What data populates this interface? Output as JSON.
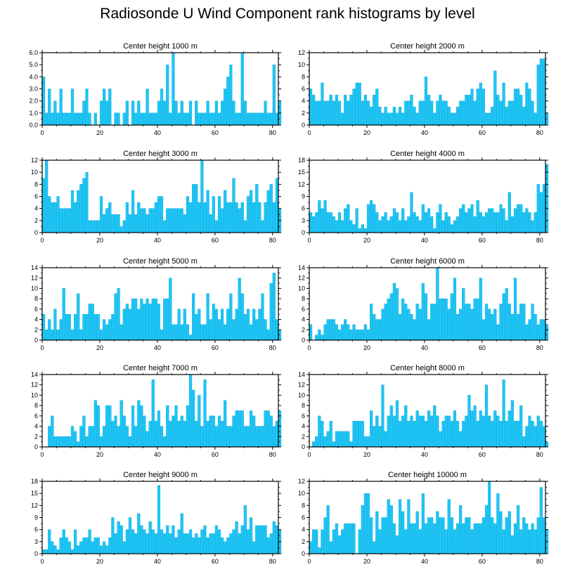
{
  "title": "Radiosonde U Wind Component rank histograms by level",
  "colors": {
    "bar": "#1ec5f5",
    "bar_edge": "#0aa8da",
    "axis": "#000000"
  },
  "chart_data": [
    {
      "type": "bar",
      "title": "Center height 1000 m",
      "xlim": [
        0,
        82
      ],
      "xticks": [
        0,
        20,
        40,
        60,
        80
      ],
      "ylim": [
        0,
        6
      ],
      "yticks": [
        0,
        1,
        2,
        3,
        4,
        5,
        6
      ],
      "ytick_labels": [
        "0.0",
        "1.0",
        "2.0",
        "3.0",
        "4.0",
        "5.0",
        "6.0"
      ],
      "values": [
        4,
        1,
        3,
        1,
        2,
        1,
        3,
        1,
        1,
        1,
        3,
        1,
        1,
        1,
        2,
        3,
        1,
        0,
        1,
        0,
        2,
        3,
        2,
        3,
        0,
        1,
        1,
        0,
        1,
        2,
        0,
        2,
        1,
        2,
        1,
        1,
        3,
        1,
        1,
        1,
        2,
        3,
        2,
        5,
        1,
        6,
        2,
        1,
        2,
        1,
        1,
        2,
        0,
        2,
        1,
        1,
        1,
        2,
        1,
        1,
        2,
        1,
        2,
        3,
        4,
        5,
        2,
        1,
        1,
        6,
        2,
        1,
        1,
        1,
        1,
        1,
        1,
        2,
        1,
        1,
        5,
        1,
        2
      ]
    },
    {
      "type": "bar",
      "title": "Center height 2000 m",
      "xlim": [
        0,
        82
      ],
      "xticks": [
        0,
        20,
        40,
        60,
        80
      ],
      "ylim": [
        0,
        12
      ],
      "yticks": [
        0,
        2,
        4,
        6,
        8,
        10,
        12
      ],
      "ytick_labels": [
        "0",
        "2",
        "4",
        "6",
        "8",
        "10",
        "12"
      ],
      "values": [
        6,
        5,
        4,
        4,
        7,
        4,
        4,
        5,
        4,
        5,
        4,
        2,
        5,
        4,
        5,
        6,
        7,
        7,
        4,
        5,
        4,
        3,
        5,
        6,
        3,
        2,
        3,
        2,
        2,
        3,
        2,
        3,
        2,
        4,
        4,
        5,
        3,
        2,
        4,
        4,
        8,
        5,
        4,
        2,
        4,
        5,
        4,
        4,
        3,
        2,
        2,
        3,
        4,
        4,
        5,
        5,
        6,
        4,
        6,
        7,
        6,
        2,
        2,
        3,
        9,
        5,
        4,
        7,
        3,
        4,
        4,
        6,
        6,
        5,
        3,
        7,
        6,
        4,
        2,
        10,
        11,
        11,
        2
      ]
    },
    {
      "type": "bar",
      "title": "Center height 3000 m",
      "xlim": [
        0,
        82
      ],
      "xticks": [
        0,
        20,
        40,
        60,
        80
      ],
      "ylim": [
        0,
        12
      ],
      "yticks": [
        0,
        2,
        4,
        6,
        8,
        10,
        12
      ],
      "ytick_labels": [
        "0",
        "2",
        "4",
        "6",
        "8",
        "10",
        "12"
      ],
      "values": [
        9,
        12,
        6,
        5,
        5,
        6,
        4,
        4,
        4,
        4,
        7,
        5,
        7,
        8,
        9,
        10,
        2,
        2,
        2,
        2,
        6,
        3,
        4,
        5,
        3,
        3,
        3,
        1,
        2,
        5,
        3,
        7,
        3,
        5,
        4,
        4,
        3,
        4,
        4,
        5,
        6,
        6,
        2,
        4,
        4,
        4,
        4,
        4,
        4,
        3,
        6,
        5,
        8,
        8,
        5,
        12,
        5,
        7,
        3,
        6,
        2,
        6,
        4,
        7,
        5,
        5,
        9,
        5,
        4,
        5,
        2,
        6,
        7,
        5,
        8,
        5,
        2,
        5,
        7,
        8,
        5,
        9,
        4
      ]
    },
    {
      "type": "bar",
      "title": "Center height 4000 m",
      "xlim": [
        0,
        82
      ],
      "xticks": [
        0,
        20,
        40,
        60,
        80
      ],
      "ylim": [
        0,
        18
      ],
      "yticks": [
        0,
        3,
        6,
        9,
        12,
        15,
        18
      ],
      "ytick_labels": [
        "0",
        "3",
        "6",
        "9",
        "12",
        "15",
        "18"
      ],
      "values": [
        5,
        4,
        5,
        8,
        6,
        8,
        5,
        5,
        4,
        3,
        5,
        3,
        6,
        7,
        3,
        2,
        6,
        1,
        2,
        1,
        7,
        8,
        7,
        5,
        3,
        4,
        5,
        3,
        4,
        6,
        5,
        3,
        6,
        3,
        4,
        10,
        5,
        4,
        3,
        7,
        5,
        6,
        4,
        1,
        5,
        7,
        3,
        5,
        4,
        2,
        3,
        4,
        6,
        7,
        5,
        6,
        7,
        4,
        8,
        5,
        4,
        5,
        6,
        6,
        5,
        5,
        7,
        6,
        3,
        10,
        4,
        6,
        7,
        7,
        5,
        6,
        5,
        3,
        5,
        12,
        10,
        12,
        17
      ]
    },
    {
      "type": "bar",
      "title": "Center height 5000 m",
      "xlim": [
        0,
        82
      ],
      "xticks": [
        0,
        20,
        40,
        60,
        80
      ],
      "ylim": [
        0,
        14
      ],
      "yticks": [
        0,
        2,
        4,
        6,
        8,
        10,
        12,
        14
      ],
      "ytick_labels": [
        "0",
        "2",
        "4",
        "6",
        "8",
        "10",
        "12",
        "14"
      ],
      "values": [
        5,
        2,
        4,
        2,
        6,
        2,
        4,
        10,
        5,
        5,
        2,
        5,
        9,
        2,
        5,
        5,
        7,
        7,
        5,
        5,
        2,
        4,
        3,
        4,
        5,
        9,
        10,
        3,
        6,
        7,
        6,
        8,
        8,
        6,
        8,
        7,
        8,
        7,
        8,
        8,
        7,
        2,
        8,
        8,
        12,
        3,
        3,
        6,
        3,
        6,
        3,
        1,
        9,
        5,
        6,
        3,
        3,
        9,
        4,
        7,
        6,
        4,
        6,
        3,
        6,
        9,
        4,
        6,
        12,
        9,
        5,
        6,
        3,
        6,
        4,
        6,
        9,
        4,
        2,
        11,
        13,
        4,
        2
      ]
    },
    {
      "type": "bar",
      "title": "Center height 6000 m",
      "xlim": [
        0,
        82
      ],
      "xticks": [
        0,
        20,
        40,
        60,
        80
      ],
      "ylim": [
        0,
        14
      ],
      "yticks": [
        0,
        2,
        4,
        6,
        8,
        10,
        12,
        14
      ],
      "ytick_labels": [
        "0",
        "2",
        "4",
        "6",
        "8",
        "10",
        "12",
        "14"
      ],
      "values": [
        3,
        0,
        1,
        2,
        1,
        3,
        4,
        4,
        4,
        3,
        2,
        3,
        4,
        3,
        2,
        3,
        2,
        2,
        2,
        3,
        2,
        7,
        5,
        4,
        4,
        6,
        7,
        8,
        9,
        11,
        10,
        5,
        8,
        7,
        6,
        5,
        4,
        7,
        6,
        11,
        9,
        4,
        7,
        7,
        14,
        8,
        8,
        8,
        6,
        9,
        12,
        5,
        6,
        10,
        7,
        7,
        6,
        8,
        8,
        12,
        4,
        7,
        6,
        5,
        6,
        3,
        7,
        9,
        10,
        7,
        5,
        12,
        5,
        7,
        7,
        3,
        4,
        7,
        5,
        3,
        4,
        4,
        3
      ]
    },
    {
      "type": "bar",
      "title": "Center height 7000 m",
      "xlim": [
        0,
        82
      ],
      "xticks": [
        0,
        20,
        40,
        60,
        80
      ],
      "ylim": [
        0,
        14
      ],
      "yticks": [
        0,
        2,
        4,
        6,
        8,
        10,
        12,
        14
      ],
      "ytick_labels": [
        "0",
        "2",
        "4",
        "6",
        "8",
        "10",
        "12",
        "14"
      ],
      "values": [
        0,
        0,
        4,
        6,
        2,
        2,
        2,
        2,
        2,
        2,
        4,
        3,
        1,
        4,
        6,
        2,
        4,
        4,
        9,
        8,
        2,
        4,
        8,
        8,
        5,
        6,
        4,
        9,
        6,
        4,
        2,
        8,
        4,
        9,
        8,
        6,
        3,
        5,
        13,
        5,
        7,
        4,
        2,
        8,
        5,
        6,
        8,
        5,
        6,
        5,
        8,
        14,
        11,
        5,
        10,
        4,
        13,
        5,
        6,
        6,
        4,
        6,
        5,
        9,
        4,
        4,
        6,
        7,
        7,
        7,
        4,
        4,
        7,
        6,
        4,
        4,
        4,
        7,
        7,
        6,
        4,
        5,
        7
      ]
    },
    {
      "type": "bar",
      "title": "Center height 8000 m",
      "xlim": [
        0,
        82
      ],
      "xticks": [
        0,
        20,
        40,
        60,
        80
      ],
      "ylim": [
        0,
        14
      ],
      "yticks": [
        0,
        2,
        4,
        6,
        8,
        10,
        12,
        14
      ],
      "ytick_labels": [
        "0",
        "2",
        "4",
        "6",
        "8",
        "10",
        "12",
        "14"
      ],
      "values": [
        0,
        1,
        2,
        6,
        5,
        2,
        3,
        5,
        1,
        3,
        3,
        3,
        3,
        3,
        1,
        5,
        5,
        5,
        5,
        2,
        2,
        7,
        4,
        6,
        4,
        12,
        3,
        6,
        8,
        6,
        9,
        5,
        6,
        8,
        5,
        6,
        5,
        7,
        6,
        6,
        5,
        7,
        6,
        8,
        6,
        3,
        5,
        6,
        6,
        5,
        7,
        5,
        3,
        5,
        6,
        10,
        7,
        8,
        5,
        7,
        6,
        12,
        6,
        5,
        7,
        6,
        5,
        13,
        5,
        7,
        9,
        5,
        5,
        8,
        2,
        4,
        6,
        5,
        4,
        6,
        5,
        4,
        1
      ]
    },
    {
      "type": "bar",
      "title": "Center height 9000 m",
      "xlim": [
        0,
        82
      ],
      "xticks": [
        0,
        20,
        40,
        60,
        80
      ],
      "ylim": [
        0,
        18
      ],
      "yticks": [
        0,
        3,
        6,
        9,
        12,
        15,
        18
      ],
      "ytick_labels": [
        "0",
        "3",
        "6",
        "9",
        "12",
        "15",
        "18"
      ],
      "values": [
        1,
        1,
        6,
        3,
        2,
        1,
        4,
        6,
        4,
        3,
        1,
        6,
        2,
        3,
        4,
        4,
        6,
        3,
        4,
        4,
        2,
        3,
        2,
        4,
        9,
        5,
        8,
        7,
        3,
        6,
        9,
        6,
        5,
        10,
        7,
        6,
        5,
        8,
        6,
        5,
        17,
        6,
        5,
        7,
        5,
        7,
        4,
        6,
        10,
        5,
        5,
        6,
        4,
        5,
        4,
        6,
        7,
        4,
        5,
        5,
        7,
        6,
        4,
        3,
        4,
        5,
        6,
        8,
        5,
        7,
        12,
        6,
        9,
        3,
        7,
        7,
        7,
        7,
        4,
        5,
        8,
        7,
        6
      ]
    },
    {
      "type": "bar",
      "title": "Center height 10000 m",
      "xlim": [
        0,
        82
      ],
      "xticks": [
        0,
        20,
        40,
        60,
        80
      ],
      "ylim": [
        0,
        12
      ],
      "yticks": [
        0,
        2,
        4,
        6,
        8,
        10,
        12
      ],
      "ytick_labels": [
        "0",
        "2",
        "4",
        "6",
        "8",
        "10",
        "12"
      ],
      "values": [
        2,
        4,
        4,
        1,
        4,
        6,
        8,
        2,
        4,
        5,
        3,
        4,
        5,
        5,
        5,
        5,
        0,
        4,
        8,
        10,
        10,
        6,
        2,
        7,
        4,
        6,
        6,
        9,
        8,
        5,
        3,
        9,
        7,
        4,
        9,
        5,
        5,
        7,
        4,
        10,
        5,
        6,
        6,
        5,
        7,
        6,
        6,
        4,
        9,
        6,
        4,
        5,
        8,
        5,
        6,
        6,
        4,
        5,
        5,
        5,
        6,
        8,
        12,
        6,
        5,
        10,
        7,
        4,
        6,
        7,
        3,
        5,
        8,
        4,
        6,
        5,
        4,
        5,
        4,
        6,
        11,
        6,
        4
      ]
    }
  ]
}
